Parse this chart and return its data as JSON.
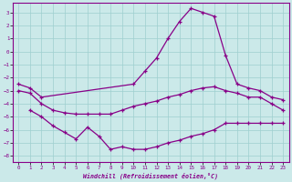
{
  "xlabel": "Windchill (Refroidissement éolien,°C)",
  "background_color": "#cbe9e9",
  "grid_color": "#9ecfcf",
  "line_color": "#880088",
  "xlim": [
    -0.5,
    23.5
  ],
  "ylim": [
    -8.5,
    3.7
  ],
  "xticks": [
    0,
    1,
    2,
    3,
    4,
    5,
    6,
    7,
    8,
    9,
    10,
    11,
    12,
    13,
    14,
    15,
    16,
    17,
    18,
    19,
    20,
    21,
    22,
    23
  ],
  "yticks": [
    3,
    2,
    1,
    0,
    -1,
    -2,
    -3,
    -4,
    -5,
    -6,
    -7,
    -8
  ],
  "line_top_x": [
    0,
    1,
    2,
    10,
    11,
    12,
    13,
    14,
    15,
    16,
    17,
    18,
    19,
    20,
    21,
    22,
    23
  ],
  "line_top_y": [
    -2.5,
    -2.8,
    -3.5,
    -2.5,
    -1.5,
    -0.5,
    1.0,
    2.3,
    3.3,
    3.0,
    2.7,
    -0.3,
    -2.5,
    -2.8,
    -3.0,
    -3.5,
    -3.7
  ],
  "line_mid_x": [
    0,
    1,
    2,
    3,
    4,
    5,
    6,
    7,
    8,
    9,
    10,
    11,
    12,
    13,
    14,
    15,
    16,
    17,
    18,
    19,
    20,
    21,
    22,
    23
  ],
  "line_mid_y": [
    -3.0,
    -3.2,
    -4.0,
    -4.5,
    -4.7,
    -4.8,
    -4.8,
    -4.8,
    -4.8,
    -4.5,
    -4.2,
    -4.0,
    -3.8,
    -3.5,
    -3.3,
    -3.0,
    -2.8,
    -2.7,
    -3.0,
    -3.2,
    -3.5,
    -3.5,
    -4.0,
    -4.5
  ],
  "line_bot_x": [
    1,
    2,
    3,
    4,
    5,
    6,
    7,
    8,
    9,
    10,
    11,
    12,
    13,
    14,
    15,
    16,
    17,
    18,
    19,
    20,
    21,
    22,
    23
  ],
  "line_bot_y": [
    -4.5,
    -5.0,
    -5.7,
    -6.2,
    -6.7,
    -5.8,
    -6.5,
    -7.5,
    -7.3,
    -7.5,
    -7.5,
    -7.3,
    -7.0,
    -6.8,
    -6.5,
    -6.3,
    -6.0,
    -5.5,
    -5.5,
    -5.5,
    -5.5,
    -5.5,
    -5.5
  ]
}
